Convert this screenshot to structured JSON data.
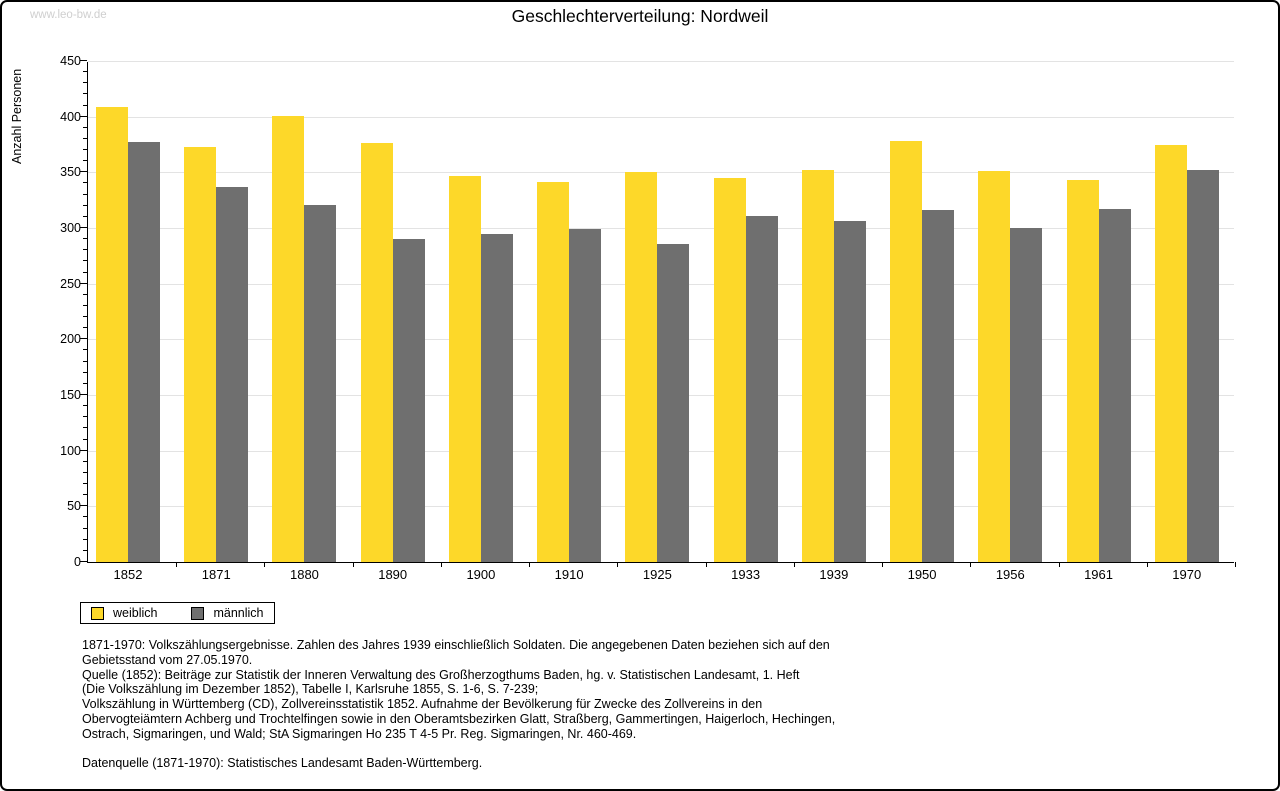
{
  "page": {
    "watermark": "www.leo-bw.de"
  },
  "chart_data": {
    "type": "bar",
    "title": "Geschlechterverteilung: Nordweil",
    "xlabel": "",
    "ylabel": "Anzahl Personen",
    "ylim": [
      0,
      450
    ],
    "yticks": [
      0,
      50,
      100,
      150,
      200,
      250,
      300,
      350,
      400,
      450
    ],
    "minor_tick_step": 10,
    "grid": true,
    "legend_position": "bottom-left",
    "categories": [
      "1852",
      "1871",
      "1880",
      "1890",
      "1900",
      "1910",
      "1925",
      "1933",
      "1939",
      "1950",
      "1956",
      "1961",
      "1970"
    ],
    "series": [
      {
        "name": "weiblich",
        "color": "#fdd829",
        "values": [
          409,
          373,
          401,
          376,
          347,
          341,
          350,
          345,
          352,
          378,
          351,
          343,
          375
        ]
      },
      {
        "name": "männlich",
        "color": "#6f6f6f",
        "values": [
          377,
          337,
          321,
          290,
          295,
          299,
          286,
          311,
          306,
          316,
          300,
          317,
          352
        ]
      }
    ]
  },
  "notes": {
    "block1": "1871-1970: Volkszählungsergebnisse. Zahlen des Jahres 1939 einschließlich Soldaten. Die angegebenen Daten beziehen sich auf den\nGebietsstand vom 27.05.1970.\nQuelle (1852): Beiträge zur Statistik der Inneren Verwaltung des Großherzogthums Baden, hg. v. Statistischen Landesamt, 1. Heft\n(Die Volkszählung im Dezember 1852), Tabelle I, Karlsruhe 1855, S. 1-6, S. 7-239;\nVolkszählung in Württemberg (CD), Zollvereinsstatistik 1852. Aufnahme der Bevölkerung für Zwecke des Zollvereins in den\nObervogteiämtern Achberg und Trochtelfingen sowie in den Oberamtsbezirken Glatt, Straßberg, Gammertingen, Haigerloch, Hechingen,\nOstrach, Sigmaringen, und Wald; StA Sigmaringen Ho 235 T 4-5 Pr. Reg. Sigmaringen, Nr. 460-469.",
    "block2": "Datenquelle (1871-1970): Statistisches Landesamt Baden-Württemberg."
  }
}
